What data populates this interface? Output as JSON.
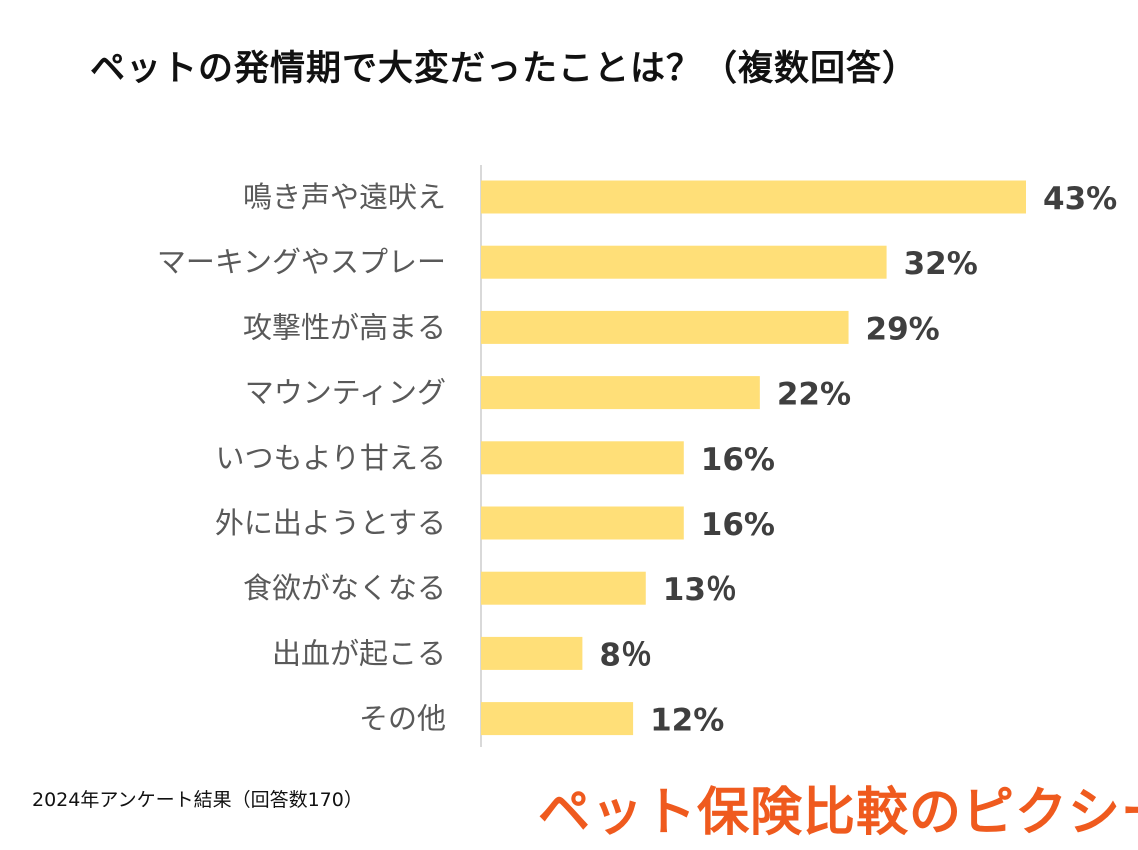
{
  "title": "ペットの発情期で大変だったことは？（複数回答）",
  "chart_data": {
    "type": "bar",
    "orientation": "horizontal",
    "title": "ペットの発情期で大変だったことは？（複数回答）",
    "categories": [
      "鳴き声や遠吠え",
      "マーキングやスプレー",
      "攻撃性が高まる",
      "マウンティング",
      "いつもより甘える",
      "外に出ようとする",
      "食欲がなくなる",
      "出血が起こる",
      "その他"
    ],
    "values": [
      43,
      32,
      29,
      22,
      16,
      16,
      13,
      8,
      12
    ],
    "value_labels": [
      "43%",
      "32%",
      "29%",
      "22%",
      "16%",
      "16%",
      "13％",
      "8％",
      "12%"
    ],
    "unit": "%",
    "xlim": [
      0,
      43
    ],
    "bar_color": "#ffdf78",
    "axis_color": "#d9d9d9",
    "grid": false,
    "legend": "none"
  },
  "footnote": "2024年アンケート結果（回答数170）",
  "brand": "ペット保険比較のピクシー",
  "colors": {
    "brand": "#ef5a1e",
    "bar": "#ffdf78"
  }
}
